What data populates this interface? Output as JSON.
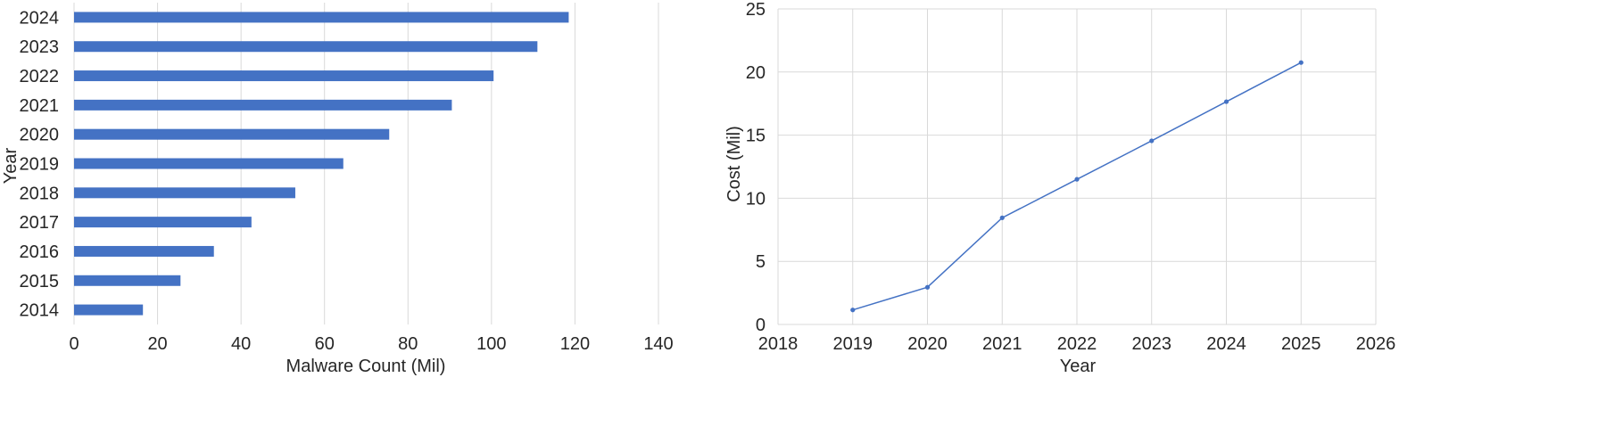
{
  "chart_data": [
    {
      "type": "bar",
      "orientation": "horizontal",
      "categories": [
        "2014",
        "2015",
        "2016",
        "2017",
        "2018",
        "2019",
        "2020",
        "2021",
        "2022",
        "2023",
        "2024"
      ],
      "values": [
        16.5,
        25.5,
        33.5,
        42.5,
        53,
        64.5,
        75.5,
        90.5,
        100.5,
        111,
        118.5
      ],
      "xlabel": "Malware Count (Mil)",
      "ylabel": "Year",
      "xlim": [
        0,
        140
      ],
      "xticks": [
        "0",
        "20",
        "40",
        "60",
        "80",
        "100",
        "120",
        "140"
      ],
      "grid": "vertical",
      "bar_color": "#4472C4"
    },
    {
      "type": "line",
      "x": [
        2019,
        2020,
        2021,
        2022,
        2023,
        2024,
        2025
      ],
      "series": [
        {
          "values": [
            1.15,
            2.95,
            8.45,
            11.5,
            14.55,
            17.65,
            20.75
          ]
        }
      ],
      "xlabel": "Year",
      "ylabel": "Cost (Mil)",
      "xlim": [
        2018,
        2026
      ],
      "ylim": [
        0,
        25
      ],
      "xticks": [
        "2018",
        "2019",
        "2020",
        "2021",
        "2022",
        "2023",
        "2024",
        "2025",
        "2026"
      ],
      "yticks": [
        "0",
        "5",
        "10",
        "15",
        "20",
        "25"
      ],
      "grid": "both",
      "line_color": "#4472C4"
    }
  ]
}
